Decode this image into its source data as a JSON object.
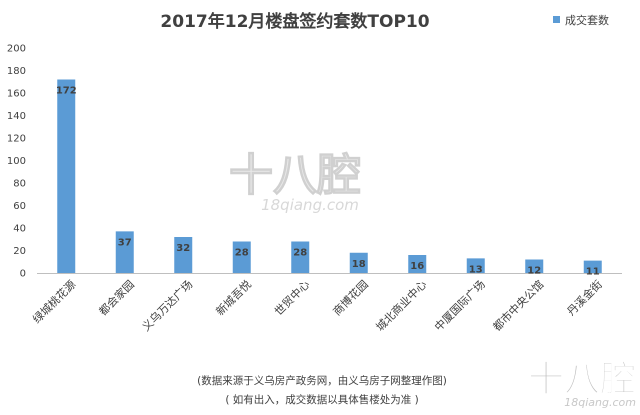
{
  "chart_data": {
    "type": "bar",
    "title": "2017年12月楼盘签约套数TOP10",
    "categories": [
      "绿城桃花源",
      "都会家园",
      "义乌万达广场",
      "新城吾悦",
      "世贸中心",
      "商博花园",
      "城北商业中心",
      "中厦国际广场",
      "都市中央公馆",
      "丹溪金街"
    ],
    "series": [
      {
        "name": "成交套数",
        "values": [
          172,
          37,
          32,
          28,
          28,
          18,
          16,
          13,
          12,
          11
        ]
      }
    ],
    "ylim": [
      0,
      200
    ],
    "yticks": [
      0,
      20,
      40,
      60,
      80,
      100,
      120,
      140,
      160,
      180,
      200
    ],
    "legend_position": "top-right",
    "grid": false,
    "bar_color": "#5b9bd5"
  },
  "notes": {
    "source": "(数据来源于义乌房产政务网，由义乌房子网整理作图)",
    "disclaimer": "( 如有出入，成交数据以具体售楼处为准 )"
  },
  "watermarks": {
    "center_big": "十八腔",
    "center_small": "18qiang.com",
    "corner_big": "十八腔",
    "corner_small": "18qiang.com"
  }
}
